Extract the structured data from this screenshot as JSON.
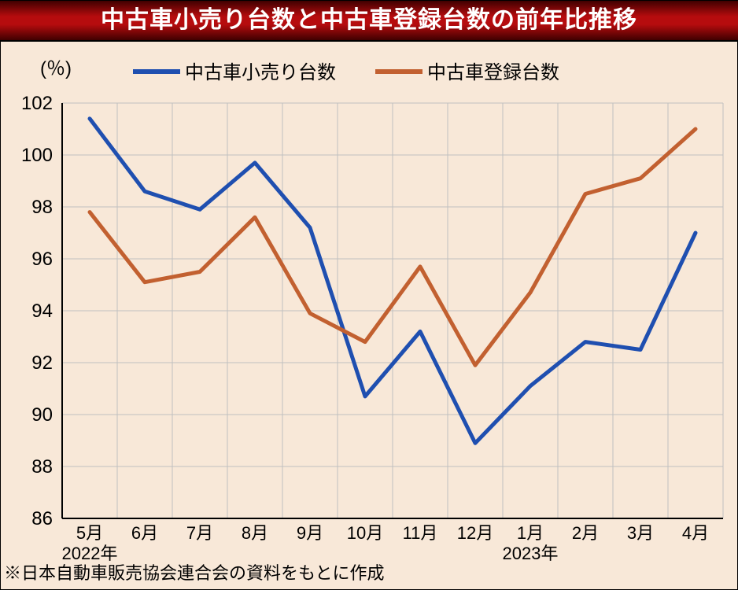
{
  "title": "中古車小売り台数と中古車登録台数の前年比推移",
  "footnote": "※日本自動車販売協会連合会の資料をもとに作成",
  "chart": {
    "type": "line",
    "y_unit_label": "(％)",
    "background_color": "#f8e8d8",
    "gridline_color": "#c0c0c0",
    "axis_color": "#000000",
    "line_width": 5,
    "ylim": [
      86,
      102
    ],
    "ytick_step": 2,
    "y_ticks": [
      86,
      88,
      90,
      92,
      94,
      96,
      98,
      100,
      102
    ],
    "x_labels": [
      "5月",
      "6月",
      "7月",
      "8月",
      "9月",
      "10月",
      "11月",
      "12月",
      "1月",
      "2月",
      "3月",
      "4月"
    ],
    "x_year_labels": [
      {
        "text": "2022年",
        "at_index": 0
      },
      {
        "text": "2023年",
        "at_index": 8
      }
    ],
    "legend": {
      "items": [
        {
          "label": "中古車小売り台数",
          "color": "#1f4fb0"
        },
        {
          "label": "中古車登録台数",
          "color": "#c26030"
        }
      ]
    },
    "series": [
      {
        "name": "retail",
        "color": "#1f4fb0",
        "values": [
          101.4,
          98.6,
          97.9,
          99.7,
          97.2,
          90.7,
          93.2,
          88.9,
          91.1,
          92.8,
          92.5,
          97.0
        ]
      },
      {
        "name": "registration",
        "color": "#c26030",
        "values": [
          97.8,
          95.1,
          95.5,
          97.6,
          93.9,
          92.8,
          95.7,
          91.9,
          94.7,
          98.5,
          99.1,
          101.0
        ]
      }
    ]
  }
}
